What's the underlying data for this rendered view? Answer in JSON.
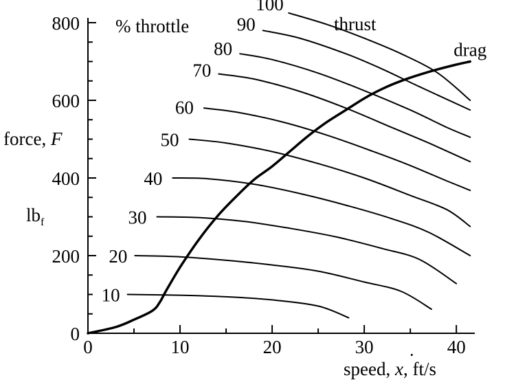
{
  "chart_data": {
    "type": "line",
    "xlabel": {
      "prefix": "speed, ",
      "symbol": "x",
      "suffix": ",  ft/s"
    },
    "ylabel": {
      "prefix": "force, ",
      "symbol": "F",
      "unit_base": "lb",
      "unit_sub": "f"
    },
    "xlim": [
      0,
      42
    ],
    "ylim": [
      0,
      800
    ],
    "x_ticks": [
      0,
      10,
      20,
      30,
      40
    ],
    "y_ticks": [
      0,
      200,
      400,
      600,
      800
    ],
    "grid": false,
    "throttle_annotation": "% throttle",
    "thrust_annotation": "thrust",
    "series": [
      {
        "name": "drag",
        "points": [
          [
            0,
            0
          ],
          [
            3,
            16
          ],
          [
            5,
            35
          ],
          [
            7,
            58
          ],
          [
            7.8,
            80
          ],
          [
            8.5,
            110
          ],
          [
            10,
            170
          ],
          [
            12,
            240
          ],
          [
            14,
            300
          ],
          [
            16,
            350
          ],
          [
            18,
            395
          ],
          [
            20,
            430
          ],
          [
            22,
            470
          ],
          [
            24,
            510
          ],
          [
            26,
            545
          ],
          [
            28,
            575
          ],
          [
            30,
            605
          ],
          [
            32,
            630
          ],
          [
            34,
            650
          ],
          [
            36,
            666
          ],
          [
            38,
            680
          ],
          [
            40,
            692
          ],
          [
            41.5,
            700
          ]
        ]
      },
      {
        "name": "10",
        "points": [
          [
            4.3,
            100
          ],
          [
            10,
            98
          ],
          [
            15,
            94
          ],
          [
            20,
            86
          ],
          [
            25,
            70
          ],
          [
            28.3,
            40
          ]
        ]
      },
      {
        "name": "20",
        "points": [
          [
            5.1,
            200
          ],
          [
            10,
            197
          ],
          [
            15,
            188
          ],
          [
            20,
            176
          ],
          [
            25,
            160
          ],
          [
            30,
            132
          ],
          [
            34,
            108
          ],
          [
            37.3,
            62
          ]
        ]
      },
      {
        "name": "30",
        "points": [
          [
            7.5,
            300
          ],
          [
            12,
            298
          ],
          [
            17,
            288
          ],
          [
            22,
            270
          ],
          [
            27,
            248
          ],
          [
            32,
            218
          ],
          [
            36,
            190
          ],
          [
            40,
            128
          ]
        ]
      },
      {
        "name": "40",
        "points": [
          [
            9.2,
            400
          ],
          [
            13,
            398
          ],
          [
            18,
            384
          ],
          [
            23,
            360
          ],
          [
            28,
            330
          ],
          [
            33,
            295
          ],
          [
            37,
            260
          ],
          [
            41.5,
            200
          ]
        ]
      },
      {
        "name": "50",
        "points": [
          [
            11,
            500
          ],
          [
            15,
            490
          ],
          [
            20,
            468
          ],
          [
            25,
            437
          ],
          [
            30,
            400
          ],
          [
            35,
            355
          ],
          [
            39,
            318
          ],
          [
            41.5,
            275
          ]
        ]
      },
      {
        "name": "60",
        "points": [
          [
            12.6,
            580
          ],
          [
            16,
            570
          ],
          [
            21,
            545
          ],
          [
            26,
            510
          ],
          [
            31,
            468
          ],
          [
            35,
            432
          ],
          [
            39,
            392
          ],
          [
            41.5,
            368
          ]
        ]
      },
      {
        "name": "70",
        "points": [
          [
            14.2,
            668
          ],
          [
            18,
            655
          ],
          [
            23,
            623
          ],
          [
            28,
            580
          ],
          [
            33,
            530
          ],
          [
            37,
            490
          ],
          [
            41.5,
            442
          ]
        ]
      },
      {
        "name": "80",
        "points": [
          [
            16.5,
            720
          ],
          [
            20,
            705
          ],
          [
            25,
            670
          ],
          [
            30,
            625
          ],
          [
            35,
            575
          ],
          [
            39,
            530
          ],
          [
            41.5,
            505
          ]
        ]
      },
      {
        "name": "90",
        "points": [
          [
            19,
            780
          ],
          [
            23,
            760
          ],
          [
            28,
            720
          ],
          [
            32,
            680
          ],
          [
            36,
            635
          ],
          [
            41.5,
            575
          ]
        ]
      },
      {
        "name": "100",
        "points": [
          [
            21.8,
            825
          ],
          [
            26,
            795
          ],
          [
            30,
            760
          ],
          [
            34,
            720
          ],
          [
            38,
            670
          ],
          [
            41.5,
            600
          ]
        ]
      }
    ]
  }
}
